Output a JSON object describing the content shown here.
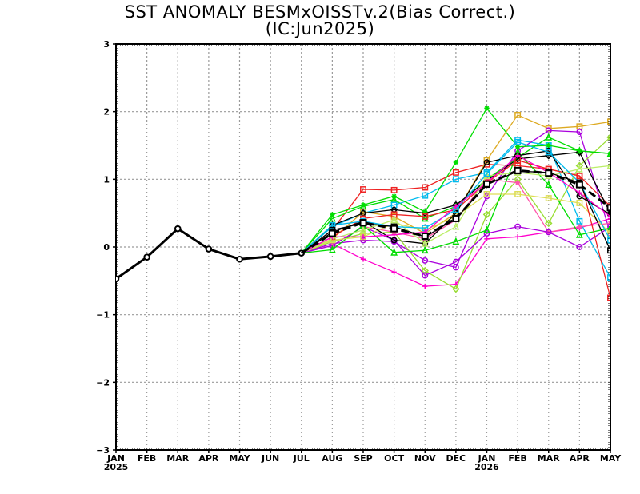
{
  "chart_data": {
    "type": "line",
    "title": "SST ANOMALY BESMxOISSTv.2(Bias Correct.)",
    "subtitle": "(IC:Jun2025)",
    "xlabel": "",
    "ylabel": "",
    "x_tick_labels": [
      "JAN",
      "FEB",
      "MAR",
      "APR",
      "MAY",
      "JUN",
      "JUL",
      "AUG",
      "SEP",
      "OCT",
      "NOV",
      "DEC",
      "JAN",
      "FEB",
      "MAR",
      "APR",
      "MAY"
    ],
    "year_labels": [
      {
        "index": 0,
        "label": "2025"
      },
      {
        "index": 12,
        "label": "2026"
      }
    ],
    "y_ticks": [
      "3",
      "2",
      "1",
      "0",
      "−1",
      "−2",
      "−3"
    ],
    "ylim": [
      -3,
      3
    ],
    "grid": true,
    "observed": {
      "name": "Observed",
      "color": "#000000",
      "x": [
        0,
        1,
        2,
        3,
        4,
        5,
        6
      ],
      "values": [
        -0.47,
        -0.15,
        0.27,
        -0.03,
        -0.18,
        -0.14,
        -0.09
      ]
    },
    "ensemble_mean": {
      "name": "Ensemble mean",
      "color": "#000000",
      "x": [
        6,
        7,
        8,
        9,
        10,
        11,
        12,
        13,
        14,
        15,
        16
      ],
      "values": [
        -0.09,
        0.2,
        0.36,
        0.27,
        0.16,
        0.42,
        0.93,
        1.13,
        1.09,
        0.92,
        0.58
      ]
    },
    "members_x": [
      6,
      7,
      8,
      9,
      10,
      11,
      12,
      13,
      14,
      15,
      16
    ],
    "members": [
      {
        "color": "#ee2222",
        "marker": "square",
        "values": [
          -0.09,
          0.25,
          0.85,
          0.84,
          0.88,
          1.1,
          1.22,
          1.2,
          1.15,
          1.05,
          0.6
        ]
      },
      {
        "color": "#ff00cc",
        "marker": "plus",
        "values": [
          -0.09,
          0.05,
          -0.18,
          -0.37,
          -0.58,
          -0.55,
          0.12,
          0.15,
          0.22,
          0.28,
          0.42
        ]
      },
      {
        "color": "#00dd00",
        "marker": "triangle",
        "values": [
          -0.09,
          0.42,
          0.6,
          0.7,
          0.42,
          0.6,
          1.0,
          1.32,
          1.62,
          1.42,
          1.38
        ]
      },
      {
        "color": "#00bbee",
        "marker": "square",
        "values": [
          -0.09,
          0.3,
          0.5,
          0.62,
          0.76,
          1.0,
          1.1,
          1.58,
          1.5,
          0.38,
          -0.45
        ]
      },
      {
        "color": "#ddaa22",
        "marker": "square",
        "values": [
          -0.09,
          0.12,
          0.52,
          0.45,
          0.2,
          0.5,
          1.28,
          1.95,
          1.75,
          1.78,
          1.85
        ]
      },
      {
        "color": "#aa00dd",
        "marker": "circle",
        "values": [
          -0.09,
          0.05,
          0.1,
          0.08,
          -0.2,
          -0.3,
          0.75,
          1.42,
          1.72,
          1.7,
          0.2
        ]
      },
      {
        "color": "#99dd33",
        "marker": "diamond",
        "values": [
          -0.09,
          0.08,
          0.2,
          0.22,
          -0.35,
          -0.62,
          0.48,
          1.0,
          0.35,
          1.2,
          1.62
        ]
      },
      {
        "color": "#000000",
        "marker": "diamond",
        "values": [
          -0.09,
          0.32,
          0.5,
          0.55,
          0.5,
          0.62,
          0.98,
          1.3,
          1.35,
          1.4,
          0.5
        ]
      },
      {
        "color": "#00dd00",
        "marker": "star",
        "values": [
          -0.09,
          0.48,
          0.62,
          0.75,
          0.52,
          1.25,
          2.05,
          1.48,
          1.5,
          1.42,
          1.38
        ]
      },
      {
        "color": "#ff55aa",
        "marker": "star",
        "values": [
          -0.09,
          0.02,
          0.3,
          0.22,
          0.12,
          0.4,
          1.0,
          0.95,
          0.22,
          0.3,
          0.35
        ]
      },
      {
        "color": "#aa00dd",
        "marker": "circle",
        "values": [
          -0.09,
          0.02,
          0.3,
          0.1,
          -0.42,
          -0.22,
          0.2,
          0.3,
          0.22,
          0.0,
          0.3
        ]
      },
      {
        "color": "#00dd00",
        "marker": "triangle",
        "values": [
          -0.09,
          -0.04,
          0.32,
          -0.08,
          -0.05,
          0.08,
          0.25,
          1.4,
          0.92,
          0.18,
          0.28
        ]
      },
      {
        "color": "#dddd55",
        "marker": "square",
        "values": [
          -0.09,
          0.1,
          0.15,
          0.35,
          0.25,
          0.45,
          0.78,
          0.78,
          0.72,
          0.65,
          0.2
        ]
      },
      {
        "color": "#ee2222",
        "marker": "square",
        "values": [
          -0.09,
          0.15,
          0.42,
          0.48,
          0.45,
          0.55,
          0.95,
          1.28,
          1.15,
          1.05,
          -0.75
        ]
      },
      {
        "color": "#000000",
        "marker": "circle",
        "values": [
          -0.09,
          0.22,
          0.38,
          0.1,
          0.05,
          0.5,
          1.25,
          1.35,
          1.42,
          0.75,
          0.48
        ]
      },
      {
        "color": "#bbee66",
        "marker": "triangle",
        "values": [
          -0.09,
          0.12,
          0.25,
          0.4,
          0.05,
          0.3,
          1.05,
          1.1,
          1.05,
          1.15,
          1.2
        ]
      },
      {
        "color": "#00bbee",
        "marker": "square",
        "values": [
          -0.09,
          0.32,
          0.38,
          0.3,
          0.28,
          0.55,
          1.08,
          1.55,
          1.4,
          0.95,
          0.1
        ]
      },
      {
        "color": "#ff00cc",
        "marker": "plus",
        "values": [
          -0.09,
          0.15,
          0.15,
          0.18,
          0.22,
          0.6,
          0.95,
          1.35,
          1.1,
          0.8,
          0.45
        ]
      },
      {
        "color": "#000000",
        "marker": "square",
        "values": [
          -0.09,
          0.25,
          0.35,
          0.3,
          0.15,
          0.42,
          0.92,
          1.12,
          1.1,
          0.95,
          -0.05
        ]
      }
    ]
  }
}
